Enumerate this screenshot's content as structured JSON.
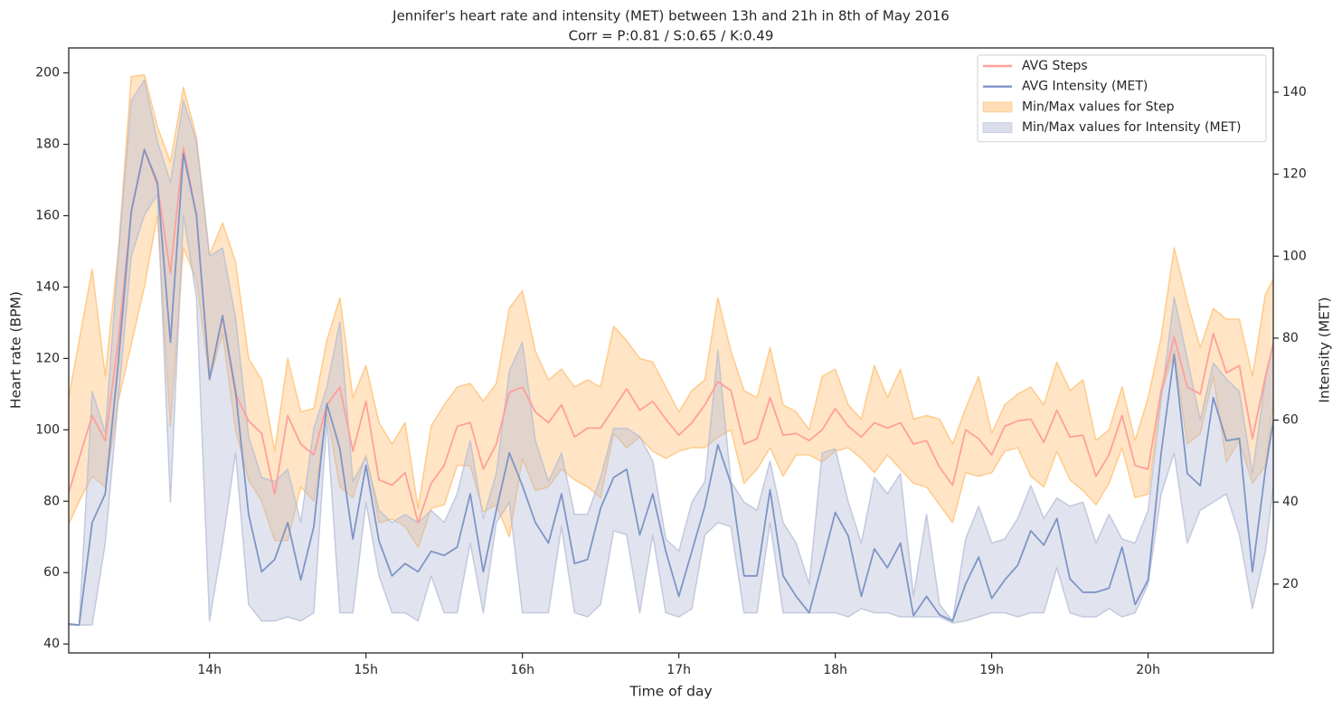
{
  "chart_data": {
    "type": "line",
    "title": "Jennifer's heart rate and intensity (MET) between 13h and 21h in 8th of May 2016",
    "subtitle": "Corr = P:0.81 / S:0.65 / K:0.49",
    "xlabel": "Time of day",
    "ylabel": "Heart rate (BPM)",
    "y2label": "Intensity (MET)",
    "x": [
      785,
      790,
      795,
      800,
      805,
      810,
      815,
      820,
      825,
      830,
      835,
      840,
      845,
      850,
      855,
      860,
      865,
      870,
      875,
      880,
      885,
      890,
      895,
      900,
      905,
      910,
      915,
      920,
      925,
      930,
      935,
      940,
      945,
      950,
      955,
      960,
      965,
      970,
      975,
      980,
      985,
      990,
      995,
      1000,
      1005,
      1010,
      1015,
      1020,
      1025,
      1030,
      1035,
      1040,
      1045,
      1050,
      1055,
      1060,
      1065,
      1070,
      1075,
      1080,
      1085,
      1090,
      1095,
      1100,
      1105,
      1110,
      1115,
      1120,
      1125,
      1130,
      1135,
      1140,
      1145,
      1150,
      1155,
      1160,
      1165,
      1170,
      1175,
      1180,
      1185,
      1190,
      1195,
      1200,
      1205,
      1210,
      1215,
      1220,
      1225,
      1230,
      1235,
      1240,
      1245,
      1250
    ],
    "xlim": [
      786,
      1248
    ],
    "xticks": [
      {
        "value": 840,
        "label": "14h"
      },
      {
        "value": 900,
        "label": "15h"
      },
      {
        "value": 960,
        "label": "16h"
      },
      {
        "value": 1020,
        "label": "17h"
      },
      {
        "value": 1080,
        "label": "18h"
      },
      {
        "value": 1140,
        "label": "19h"
      },
      {
        "value": 1200,
        "label": "20h"
      }
    ],
    "ylim": [
      37.5,
      207
    ],
    "yticks": [
      40,
      60,
      80,
      100,
      120,
      140,
      160,
      180,
      200
    ],
    "y2lim": [
      3.2,
      150.8
    ],
    "y2ticks": [
      20,
      40,
      60,
      80,
      100,
      120,
      140
    ],
    "grid": false,
    "legend": "upper right",
    "series": [
      {
        "name": "AVG Steps",
        "color": "#ff9f9b",
        "axis": "y",
        "values": [
          80,
          92,
          104,
          97,
          125,
          161,
          178.5,
          168.5,
          144,
          179,
          160,
          114,
          131.5,
          110,
          102.5,
          99,
          82,
          104,
          96,
          93,
          107,
          112,
          94,
          108,
          86,
          84.5,
          88,
          74,
          85,
          90,
          101,
          102,
          89,
          96,
          110.5,
          112,
          105,
          102,
          107,
          98,
          100.5,
          100.5,
          106,
          111.5,
          105.5,
          108,
          103,
          98.5,
          102,
          107,
          113.5,
          111,
          96,
          97.5,
          109,
          98.5,
          99,
          97,
          100,
          106,
          101,
          98,
          102,
          100.5,
          102,
          96,
          97,
          89.5,
          84.5,
          100,
          97.5,
          93,
          101,
          102.5,
          103,
          96.5,
          105.5,
          98,
          98.5,
          87,
          93,
          104,
          90,
          89,
          111,
          126,
          112,
          110,
          127,
          116,
          118,
          97.5,
          115,
          130
        ]
      },
      {
        "name": "AVG Intensity (MET)",
        "color": "#7f95c6",
        "axis": "y2",
        "values": [
          10.3,
          10,
          35,
          42,
          74,
          111,
          126,
          118,
          79,
          125,
          110,
          70,
          85.5,
          67,
          37,
          23,
          26,
          35,
          21,
          34,
          64,
          53,
          31,
          49,
          30.5,
          22,
          25,
          23,
          28,
          27,
          29,
          42,
          23,
          38,
          52,
          44,
          35,
          30,
          42,
          25,
          26,
          38.5,
          46,
          48,
          32,
          42,
          28,
          17,
          28,
          39,
          54,
          44.5,
          22,
          22,
          43,
          22,
          17,
          13,
          25,
          37.5,
          31.7,
          17,
          28.6,
          24,
          30,
          12.3,
          17,
          12.5,
          11,
          20,
          26.6,
          16.5,
          21,
          24.6,
          33,
          29.5,
          36,
          21.3,
          18,
          18,
          19,
          29,
          15,
          21,
          52,
          76,
          47,
          44,
          65.5,
          55,
          55.5,
          23,
          48,
          67.6
        ]
      },
      {
        "name": "Min/Max values for Step",
        "color": "#ffbe6f",
        "axis": "y",
        "min": [
          72,
          80,
          87,
          84,
          108,
          124,
          140,
          160,
          101,
          151,
          142,
          114,
          127,
          100,
          86,
          80,
          69,
          69,
          84,
          80,
          105,
          84,
          81,
          93,
          74,
          75,
          73,
          67,
          78,
          79,
          90,
          90,
          77,
          79,
          70,
          92,
          83,
          84,
          89,
          86,
          84,
          81,
          99,
          95,
          98,
          94,
          92,
          94,
          95,
          95,
          98,
          100,
          85,
          89,
          95,
          87,
          93,
          93,
          91,
          94,
          95,
          92,
          88,
          93,
          89,
          85,
          84,
          79,
          74,
          88,
          87,
          88,
          94,
          95,
          87,
          84,
          94,
          86,
          83,
          79,
          85,
          95,
          81,
          82,
          110,
          122,
          96,
          99,
          115,
          91,
          97,
          85,
          90,
          120
        ],
        "max": [
          105,
          125,
          145,
          115,
          150,
          199,
          199.5,
          185,
          175,
          196,
          182,
          149,
          158,
          147,
          120,
          114,
          94,
          120,
          105,
          106,
          125,
          137,
          109,
          118,
          102,
          96,
          102,
          78,
          101,
          107,
          112,
          113,
          108,
          113,
          134,
          139,
          122,
          114,
          117,
          112,
          114,
          112,
          129,
          125,
          120,
          119,
          112,
          105,
          111,
          114,
          137,
          122,
          111,
          109,
          123,
          107,
          105,
          100,
          115,
          117,
          107,
          103,
          118,
          109,
          117,
          103,
          104,
          103,
          96,
          106,
          115,
          99,
          107,
          110,
          112,
          107,
          119,
          111,
          114,
          97,
          100,
          112,
          97,
          109,
          126,
          151,
          136,
          123,
          134,
          131,
          131,
          115,
          138,
          145
        ]
      },
      {
        "name": "Min/Max values for Intensity (MET)",
        "color": "#b4bcd6",
        "axis": "y2",
        "min": [
          10,
          10,
          10,
          30,
          65,
          100,
          110,
          115,
          40,
          110,
          90,
          11,
          30,
          52,
          15,
          11,
          11,
          12,
          11,
          13,
          60,
          13,
          13,
          40,
          22,
          13,
          13,
          11,
          22,
          13,
          13,
          30,
          13,
          35,
          40,
          13,
          13,
          13,
          34,
          13,
          12,
          15,
          33,
          32,
          13,
          32,
          13,
          12,
          14,
          32,
          35,
          34,
          13,
          13,
          35,
          13,
          13,
          13,
          13,
          13,
          12,
          14,
          13,
          13,
          12,
          12,
          12,
          12,
          10.5,
          11,
          12,
          13,
          13,
          12,
          13,
          13,
          24,
          13,
          12,
          12,
          14,
          12,
          13,
          20,
          42,
          52,
          30,
          38,
          40,
          42,
          32,
          14,
          28,
          55
        ],
        "max": [
          10.5,
          10,
          67,
          57,
          100,
          138,
          143,
          128,
          118,
          138,
          128,
          100,
          102,
          85,
          56,
          46,
          45,
          48,
          35,
          58,
          68,
          84,
          45,
          51,
          38,
          35,
          37,
          35,
          38,
          35,
          42,
          55,
          36,
          47,
          72,
          79,
          55,
          45,
          52,
          37,
          37,
          46,
          58,
          58,
          56,
          50,
          31,
          28,
          40,
          45,
          77,
          45,
          40,
          38,
          50,
          35,
          30,
          20,
          52,
          53,
          40,
          30,
          46,
          42,
          47,
          17,
          37,
          15,
          11,
          31,
          39,
          30,
          31,
          36,
          44,
          36,
          41,
          39,
          40,
          30,
          37,
          31,
          30,
          38,
          65,
          90,
          75,
          60,
          74,
          70,
          67,
          47,
          70,
          85
        ]
      }
    ]
  }
}
